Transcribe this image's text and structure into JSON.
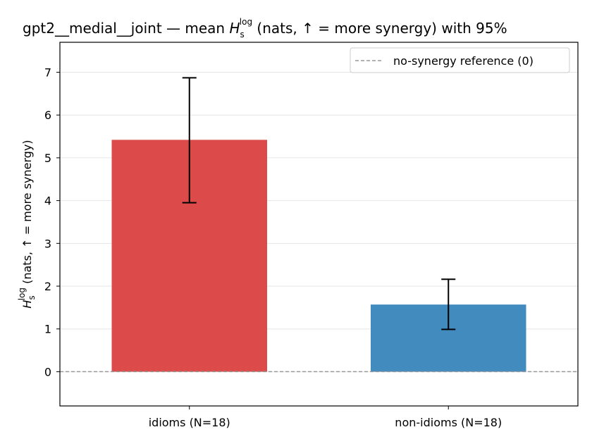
{
  "chart_data": {
    "type": "bar",
    "title": {
      "prefix": "gpt2__medial__joint — mean ",
      "symbol": "H",
      "subscript": "s",
      "superscript": "log",
      "suffix": " (nats, ↑ = more synergy) with 95%"
    },
    "ylabel": {
      "symbol": "H",
      "subscript": "s",
      "superscript": "log",
      "suffix": " (nats, ↑ = more synergy)"
    },
    "categories": [
      "idioms (N=18)",
      "non-idioms (N=18)"
    ],
    "values": [
      5.42,
      1.57
    ],
    "ci_low": [
      3.95,
      0.99
    ],
    "ci_high": [
      6.87,
      2.16
    ],
    "colors": [
      "#dc4a4a",
      "#428bbf"
    ],
    "ylim": [
      -0.8,
      7.7
    ],
    "yticks": [
      0,
      1,
      2,
      3,
      4,
      5,
      6,
      7
    ],
    "grid": "y",
    "reference_line": {
      "value": 0,
      "label": "no-synergy reference (0)",
      "style": "dashed",
      "color": "#999999"
    },
    "legend": {
      "position": "top-right",
      "entries": [
        "no-synergy reference (0)"
      ]
    }
  }
}
